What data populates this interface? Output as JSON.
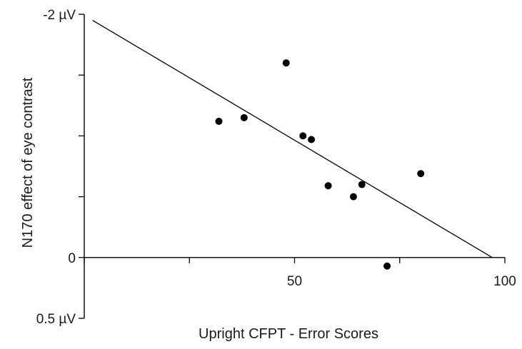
{
  "chart_data": {
    "type": "scatter",
    "title": "",
    "xlabel": "Upright CFPT - Error Scores",
    "ylabel": "N170 effect of eye contrast",
    "xlim": [
      0,
      100
    ],
    "ylim": [
      0.5,
      -2
    ],
    "y_axis_inverted": true,
    "x_ticks": [
      0,
      25,
      50,
      75,
      100
    ],
    "x_tick_labels": [
      "",
      "",
      "50",
      "",
      "100"
    ],
    "y_ticks": [
      -2,
      -1.5,
      -1,
      -0.5,
      0,
      0.5
    ],
    "y_tick_labels": [
      "-2 µV",
      "",
      "",
      "",
      "0",
      "0.5 µV"
    ],
    "grid": false,
    "legend": "none",
    "series": [
      {
        "marker": "filled-circle",
        "color": "#000000",
        "x": [
          32,
          38,
          48,
          52,
          54,
          58,
          64,
          66,
          72,
          80
        ],
        "y": [
          -1.12,
          -1.15,
          -1.6,
          -1.0,
          -0.97,
          -0.59,
          -0.5,
          -0.6,
          0.07,
          -0.69
        ]
      }
    ],
    "fit_line": {
      "x": [
        2,
        97
      ],
      "y": [
        -1.95,
        0
      ]
    }
  }
}
